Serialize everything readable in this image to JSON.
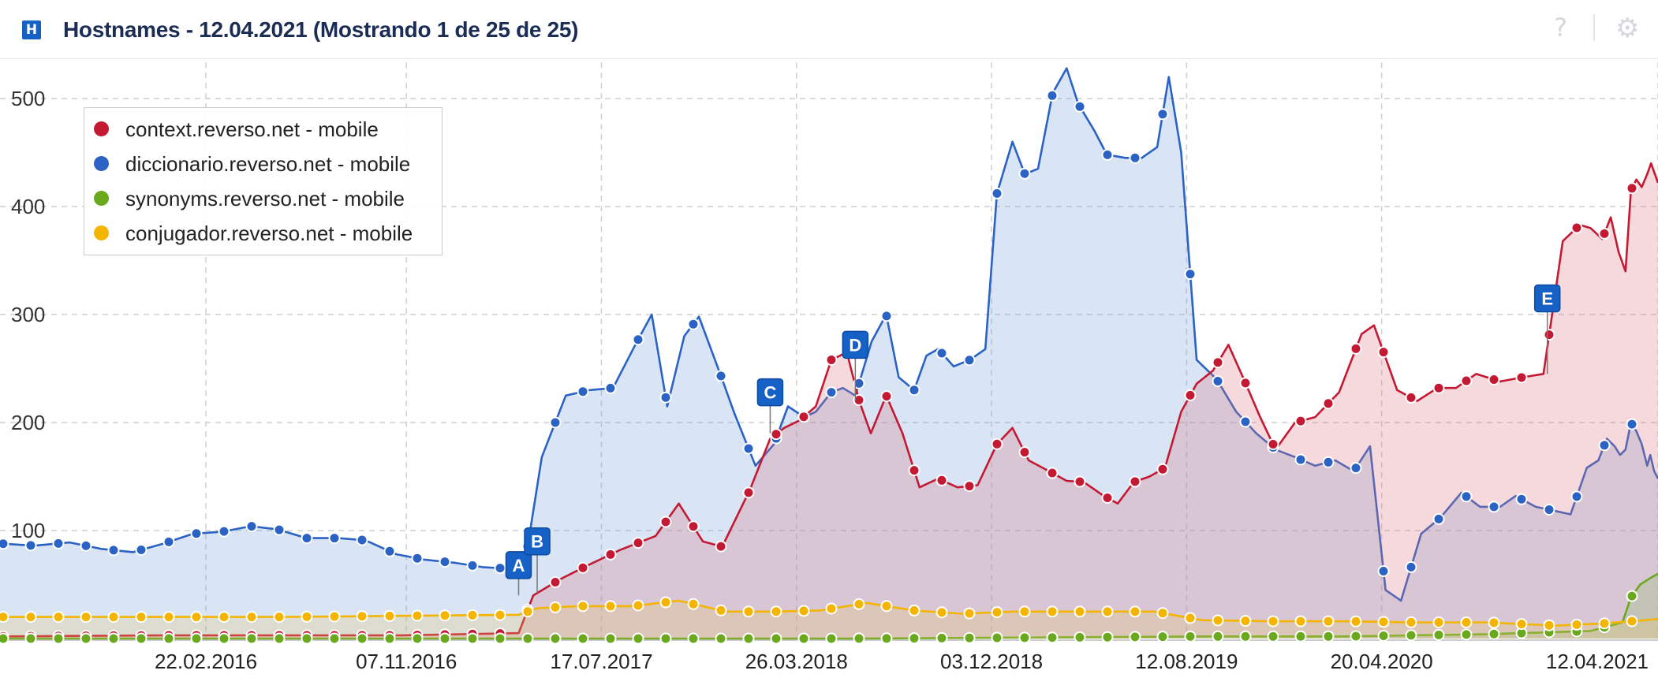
{
  "header": {
    "logo_letter": "H",
    "title": "Hostnames - 12.04.2021 (Mostrando 1 de 25 de 25)",
    "help_icon": "?",
    "settings_icon": "⚙"
  },
  "chart_data": {
    "type": "area",
    "title": "",
    "xlabel": "",
    "ylabel": "",
    "x_range": [
      "2015-06-01",
      "2021-04-12"
    ],
    "ylim": [
      0,
      540
    ],
    "y_ticks": [
      100,
      200,
      300,
      400,
      500
    ],
    "x_ticks": [
      "22.02.2016",
      "07.11.2016",
      "17.07.2017",
      "26.03.2018",
      "03.12.2018",
      "12.08.2019",
      "20.04.2020",
      "12.04.2021"
    ],
    "grid": true,
    "legend_position": "top-left",
    "series": [
      {
        "name": "diccionario.reverso.net - mobile",
        "color": "#2a63c4",
        "fill": "rgba(120,160,220,0.28)",
        "points": [
          [
            "2015-06-01",
            88
          ],
          [
            "2015-07-15",
            86
          ],
          [
            "2015-08-30",
            89
          ],
          [
            "2015-10-10",
            83
          ],
          [
            "2015-11-20",
            80
          ],
          [
            "2015-12-30",
            88
          ],
          [
            "2016-02-05",
            97
          ],
          [
            "2016-03-15",
            99
          ],
          [
            "2016-04-20",
            104
          ],
          [
            "2016-05-25",
            101
          ],
          [
            "2016-07-01",
            93
          ],
          [
            "2016-08-10",
            93
          ],
          [
            "2016-09-15",
            91
          ],
          [
            "2016-10-25",
            78
          ],
          [
            "2016-12-01",
            73
          ],
          [
            "2017-01-10",
            70
          ],
          [
            "2017-02-15",
            66
          ],
          [
            "2017-03-15",
            65
          ],
          [
            "2017-04-10",
            73
          ],
          [
            "2017-05-01",
            168
          ],
          [
            "2017-06-01",
            225
          ],
          [
            "2017-07-01",
            230
          ],
          [
            "2017-08-01",
            232
          ],
          [
            "2017-09-01",
            275
          ],
          [
            "2017-09-20",
            300
          ],
          [
            "2017-10-10",
            215
          ],
          [
            "2017-11-01",
            280
          ],
          [
            "2017-11-20",
            298
          ],
          [
            "2017-12-20",
            240
          ],
          [
            "2018-01-05",
            208
          ],
          [
            "2018-02-01",
            160
          ],
          [
            "2018-02-25",
            180
          ],
          [
            "2018-03-15",
            215
          ],
          [
            "2018-04-05",
            205
          ],
          [
            "2018-04-20",
            210
          ],
          [
            "2018-05-10",
            228
          ],
          [
            "2018-05-25",
            232
          ],
          [
            "2018-06-10",
            225
          ],
          [
            "2018-07-01",
            275
          ],
          [
            "2018-07-20",
            300
          ],
          [
            "2018-08-05",
            242
          ],
          [
            "2018-08-25",
            230
          ],
          [
            "2018-09-10",
            262
          ],
          [
            "2018-09-25",
            268
          ],
          [
            "2018-10-15",
            252
          ],
          [
            "2018-11-05",
            258
          ],
          [
            "2018-11-25",
            268
          ],
          [
            "2018-12-10",
            412
          ],
          [
            "2018-12-30",
            460
          ],
          [
            "2019-01-15",
            430
          ],
          [
            "2019-02-01",
            435
          ],
          [
            "2019-02-20",
            505
          ],
          [
            "2019-03-10",
            528
          ],
          [
            "2019-03-25",
            495
          ],
          [
            "2019-04-15",
            470
          ],
          [
            "2019-05-01",
            448
          ],
          [
            "2019-05-25",
            445
          ],
          [
            "2019-06-15",
            445
          ],
          [
            "2019-07-05",
            455
          ],
          [
            "2019-07-20",
            520
          ],
          [
            "2019-08-05",
            450
          ],
          [
            "2019-08-25",
            258
          ],
          [
            "2019-09-20",
            240
          ],
          [
            "2019-10-15",
            210
          ],
          [
            "2019-11-10",
            190
          ],
          [
            "2019-12-05",
            175
          ],
          [
            "2019-12-30",
            168
          ],
          [
            "2020-01-25",
            160
          ],
          [
            "2020-02-20",
            165
          ],
          [
            "2020-03-15",
            155
          ],
          [
            "2020-04-05",
            178
          ],
          [
            "2020-04-25",
            45
          ],
          [
            "2020-05-15",
            35
          ],
          [
            "2020-06-10",
            97
          ],
          [
            "2020-07-05",
            112
          ],
          [
            "2020-08-01",
            135
          ],
          [
            "2020-08-25",
            122
          ],
          [
            "2020-09-20",
            122
          ],
          [
            "2020-10-10",
            132
          ],
          [
            "2020-11-05",
            122
          ],
          [
            "2020-12-01",
            118
          ],
          [
            "2020-12-20",
            115
          ],
          [
            "2021-01-10",
            158
          ],
          [
            "2021-01-25",
            165
          ],
          [
            "2021-02-05",
            185
          ],
          [
            "2021-02-15",
            178
          ],
          [
            "2021-02-22",
            170
          ],
          [
            "2021-03-01",
            175
          ],
          [
            "2021-03-08",
            200
          ],
          [
            "2021-03-15",
            192
          ],
          [
            "2021-03-22",
            180
          ],
          [
            "2021-03-29",
            160
          ],
          [
            "2021-04-02",
            170
          ],
          [
            "2021-04-07",
            155
          ],
          [
            "2021-04-12",
            148
          ]
        ]
      },
      {
        "name": "context.reverso.net - mobile",
        "color": "#c41932",
        "fill": "rgba(220,120,130,0.28)",
        "points": [
          [
            "2015-06-01",
            2
          ],
          [
            "2016-01-01",
            3
          ],
          [
            "2016-06-01",
            3
          ],
          [
            "2016-11-01",
            3
          ],
          [
            "2017-04-01",
            5
          ],
          [
            "2017-04-20",
            40
          ],
          [
            "2017-05-25",
            55
          ],
          [
            "2017-06-30",
            68
          ],
          [
            "2017-08-10",
            82
          ],
          [
            "2017-09-25",
            95
          ],
          [
            "2017-10-25",
            125
          ],
          [
            "2017-11-25",
            90
          ],
          [
            "2017-12-20",
            85
          ],
          [
            "2018-01-25",
            138
          ],
          [
            "2018-02-20",
            185
          ],
          [
            "2018-03-10",
            195
          ],
          [
            "2018-03-30",
            202
          ],
          [
            "2018-04-20",
            215
          ],
          [
            "2018-05-10",
            258
          ],
          [
            "2018-05-30",
            265
          ],
          [
            "2018-06-15",
            220
          ],
          [
            "2018-06-30",
            190
          ],
          [
            "2018-07-20",
            225
          ],
          [
            "2018-08-10",
            190
          ],
          [
            "2018-09-01",
            140
          ],
          [
            "2018-09-25",
            148
          ],
          [
            "2018-10-20",
            140
          ],
          [
            "2018-11-15",
            142
          ],
          [
            "2018-12-10",
            180
          ],
          [
            "2018-12-30",
            195
          ],
          [
            "2019-01-20",
            165
          ],
          [
            "2019-02-15",
            155
          ],
          [
            "2019-03-10",
            146
          ],
          [
            "2019-04-01",
            145
          ],
          [
            "2019-04-25",
            133
          ],
          [
            "2019-05-15",
            125
          ],
          [
            "2019-06-05",
            145
          ],
          [
            "2019-06-25",
            150
          ],
          [
            "2019-07-15",
            158
          ],
          [
            "2019-08-05",
            210
          ],
          [
            "2019-08-25",
            236
          ],
          [
            "2019-09-15",
            248
          ],
          [
            "2019-10-05",
            272
          ],
          [
            "2019-10-25",
            240
          ],
          [
            "2019-11-15",
            205
          ],
          [
            "2019-12-05",
            175
          ],
          [
            "2019-12-30",
            200
          ],
          [
            "2020-01-25",
            205
          ],
          [
            "2020-02-25",
            228
          ],
          [
            "2020-03-25",
            282
          ],
          [
            "2020-04-10",
            290
          ],
          [
            "2020-05-10",
            230
          ],
          [
            "2020-06-05",
            220
          ],
          [
            "2020-07-01",
            232
          ],
          [
            "2020-07-25",
            232
          ],
          [
            "2020-08-20",
            245
          ],
          [
            "2020-09-20",
            238
          ],
          [
            "2020-10-20",
            242
          ],
          [
            "2020-11-15",
            245
          ],
          [
            "2020-12-10",
            368
          ],
          [
            "2021-01-01",
            383
          ],
          [
            "2021-01-15",
            380
          ],
          [
            "2021-01-30",
            370
          ],
          [
            "2021-02-10",
            390
          ],
          [
            "2021-02-20",
            358
          ],
          [
            "2021-03-01",
            340
          ],
          [
            "2021-03-08",
            415
          ],
          [
            "2021-03-15",
            425
          ],
          [
            "2021-03-22",
            418
          ],
          [
            "2021-03-29",
            430
          ],
          [
            "2021-04-03",
            440
          ],
          [
            "2021-04-08",
            430
          ],
          [
            "2021-04-12",
            422
          ]
        ]
      },
      {
        "name": "synonyms.reverso.net - mobile",
        "color": "#6aa81e",
        "fill": "rgba(150,190,120,0.3)",
        "points": [
          [
            "2015-06-01",
            0
          ],
          [
            "2016-06-01",
            0
          ],
          [
            "2017-06-01",
            0
          ],
          [
            "2018-06-01",
            0
          ],
          [
            "2019-03-01",
            1
          ],
          [
            "2019-09-01",
            2
          ],
          [
            "2020-03-01",
            2
          ],
          [
            "2020-09-01",
            4
          ],
          [
            "2021-01-15",
            7
          ],
          [
            "2021-02-25",
            15
          ],
          [
            "2021-03-08",
            38
          ],
          [
            "2021-03-20",
            50
          ],
          [
            "2021-04-02",
            56
          ],
          [
            "2021-04-12",
            60
          ]
        ]
      },
      {
        "name": "conjugador.reverso.net - mobile",
        "color": "#f4b400",
        "fill": "rgba(230,200,100,0.25)",
        "points": [
          [
            "2015-06-01",
            20
          ],
          [
            "2016-01-01",
            20
          ],
          [
            "2016-06-01",
            20
          ],
          [
            "2016-11-01",
            21
          ],
          [
            "2017-04-01",
            22
          ],
          [
            "2017-04-25",
            28
          ],
          [
            "2017-06-15",
            30
          ],
          [
            "2017-08-25",
            30
          ],
          [
            "2017-10-25",
            35
          ],
          [
            "2017-12-25",
            25
          ],
          [
            "2018-02-25",
            25
          ],
          [
            "2018-04-25",
            26
          ],
          [
            "2018-06-25",
            33
          ],
          [
            "2018-08-25",
            26
          ],
          [
            "2018-10-25",
            23
          ],
          [
            "2019-01-01",
            25
          ],
          [
            "2019-04-01",
            25
          ],
          [
            "2019-07-01",
            25
          ],
          [
            "2019-09-01",
            17
          ],
          [
            "2019-12-01",
            16
          ],
          [
            "2020-03-01",
            16
          ],
          [
            "2020-06-01",
            15
          ],
          [
            "2020-09-01",
            15
          ],
          [
            "2020-12-01",
            12
          ],
          [
            "2021-02-01",
            14
          ],
          [
            "2021-04-12",
            18
          ]
        ]
      }
    ],
    "annotations": [
      {
        "label": "A",
        "x": "2017-04-01",
        "y": 68,
        "anchor_y": 40
      },
      {
        "label": "B",
        "x": "2017-04-25",
        "y": 90,
        "anchor_y": 42
      },
      {
        "label": "C",
        "x": "2018-02-20",
        "y": 228,
        "anchor_y": 190
      },
      {
        "label": "D",
        "x": "2018-06-10",
        "y": 272,
        "anchor_y": 220
      },
      {
        "label": "E",
        "x": "2020-11-20",
        "y": 315,
        "anchor_y": 245
      }
    ]
  }
}
